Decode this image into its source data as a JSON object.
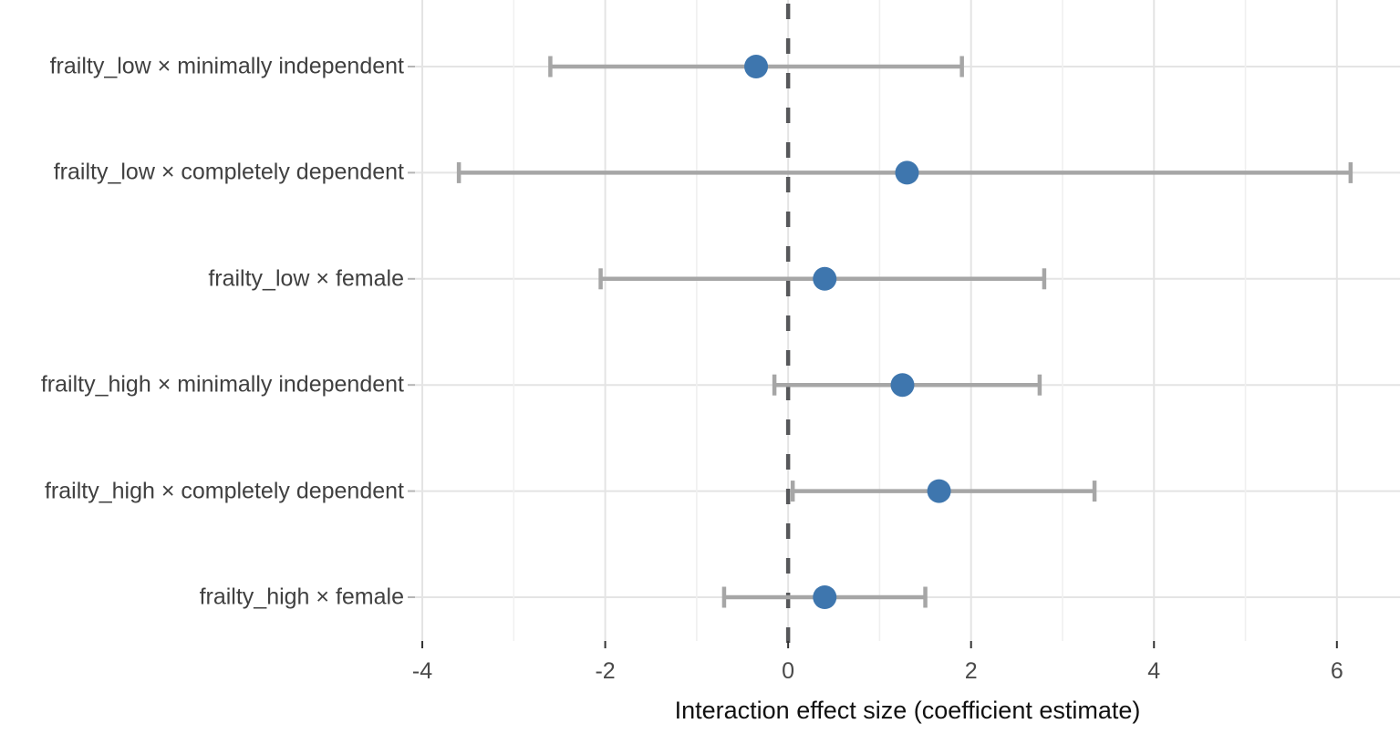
{
  "chart_data": {
    "type": "scatter",
    "subtype": "forest-dot-whisker",
    "title": "",
    "xlabel": "Interaction effect size (coefficient estimate)",
    "ylabel": "",
    "xlim": [
      -4.08,
      6.69
    ],
    "xticks": [
      -4,
      -2,
      0,
      2,
      4,
      6
    ],
    "xminor": [
      -3,
      -1,
      1,
      3,
      5
    ],
    "grid": true,
    "reference_line": {
      "x": 0,
      "style": "dashed"
    },
    "rows": [
      {
        "label": "frailty_low × minimally independent",
        "estimate": -0.35,
        "ci_low": -2.6,
        "ci_high": 1.9
      },
      {
        "label": "frailty_low × completely dependent",
        "estimate": 1.3,
        "ci_low": -3.6,
        "ci_high": 6.15
      },
      {
        "label": "frailty_low × female",
        "estimate": 0.4,
        "ci_low": -2.05,
        "ci_high": 2.8
      },
      {
        "label": "frailty_high × minimally independent",
        "estimate": 1.25,
        "ci_low": -0.15,
        "ci_high": 2.75
      },
      {
        "label": "frailty_high × completely dependent",
        "estimate": 1.65,
        "ci_low": 0.05,
        "ci_high": 3.35
      },
      {
        "label": "frailty_high × female",
        "estimate": 0.4,
        "ci_low": -0.7,
        "ci_high": 1.5
      }
    ],
    "colors": {
      "point": "#3E76AE",
      "error_bar": "#A6A6A6",
      "reference_line": "#56575A",
      "grid_major": "#E4E4E4",
      "grid_minor": "#F0F0F0",
      "axis_tick": "#333333",
      "y_tick": "#B5B5B5",
      "tick_text": "#4A4A4A",
      "label_text": "#404040"
    }
  }
}
